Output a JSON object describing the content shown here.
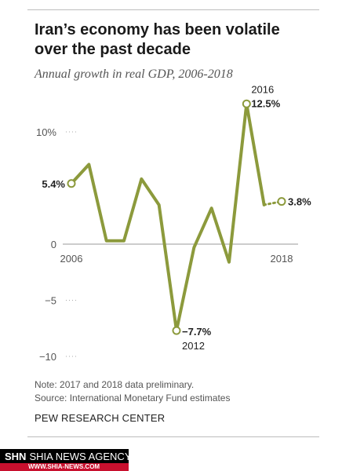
{
  "header": {
    "title": "Iran’s economy has been volatile over the past decade",
    "subtitle": "Annual growth in real GDP, 2006-2018"
  },
  "chart_data": {
    "type": "line",
    "title": "Iran’s economy has been volatile over the past decade",
    "subtitle": "Annual growth in real GDP, 2006-2018",
    "x": [
      2006,
      2007,
      2008,
      2009,
      2010,
      2011,
      2012,
      2013,
      2014,
      2015,
      2016,
      2017,
      2018
    ],
    "series": [
      {
        "values": [
          5.4,
          7.1,
          0.3,
          0.3,
          5.8,
          3.5,
          -7.7,
          -0.3,
          3.2,
          -1.6,
          12.5,
          3.5,
          3.8
        ],
        "color": "#8c9a3c",
        "preliminary_years": [
          2017,
          2018
        ]
      }
    ],
    "y_ticks": [
      {
        "value": 10,
        "label": "10%"
      },
      {
        "value": 0,
        "label": "0"
      },
      {
        "value": -5,
        "label": "−5"
      },
      {
        "value": -10,
        "label": "−10"
      }
    ],
    "x_ticks": [
      {
        "value": 2006,
        "label": "2006"
      },
      {
        "value": 2018,
        "label": "2018"
      }
    ],
    "annotations": [
      {
        "x": 2006,
        "y": 5.4,
        "label": "5.4%"
      },
      {
        "x": 2012,
        "y": -7.7,
        "label": "−7.7%",
        "year_label": "2012"
      },
      {
        "x": 2016,
        "y": 12.5,
        "label": "12.5%",
        "year_label": "2016"
      },
      {
        "x": 2018,
        "y": 3.8,
        "label": "3.8%"
      }
    ],
    "xlim": [
      2006,
      2018
    ],
    "ylim": [
      -10,
      12.5
    ],
    "grid": false,
    "legend": "none"
  },
  "footer": {
    "note": "Note: 2017 and 2018 data preliminary.",
    "source": "Source: International Monetary Fund estimates",
    "org": "PEW RESEARCH CENTER"
  },
  "watermark": {
    "short": "SHN",
    "name": "SHIA NEWS AGENCY",
    "url": "WWW.SHIA-NEWS.COM"
  }
}
